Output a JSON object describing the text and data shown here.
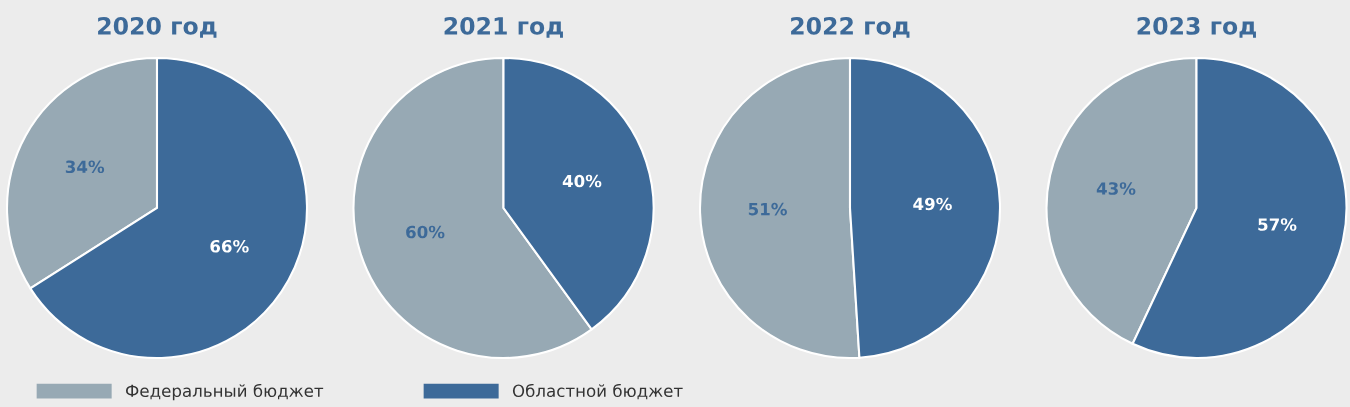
{
  "chart_data": [
    {
      "type": "pie",
      "title": "2020 год",
      "categories": [
        "Федеральный бюджет",
        "Областной бюджет"
      ],
      "values": [
        34,
        66
      ],
      "colors": [
        "#97a9b4",
        "#3d6a99"
      ],
      "value_labels": [
        "34%",
        "66%"
      ],
      "legend": "bottom"
    },
    {
      "type": "pie",
      "title": "2021 год",
      "values": [
        60,
        40
      ],
      "colors": [
        "#97a9b4",
        "#3d6a99"
      ],
      "value_labels": [
        "60%",
        "40%"
      ]
    },
    {
      "type": "pie",
      "title": "2022 год",
      "values": [
        51,
        49
      ],
      "colors": [
        "#97a9b4",
        "#3d6a99"
      ],
      "value_labels": [
        "51%",
        "49%"
      ]
    },
    {
      "type": "pie",
      "title": "2023 год",
      "values": [
        43,
        57
      ],
      "colors": [
        "#97a9b4",
        "#3d6a99"
      ],
      "value_labels": [
        "43%",
        "57%"
      ]
    }
  ]
}
